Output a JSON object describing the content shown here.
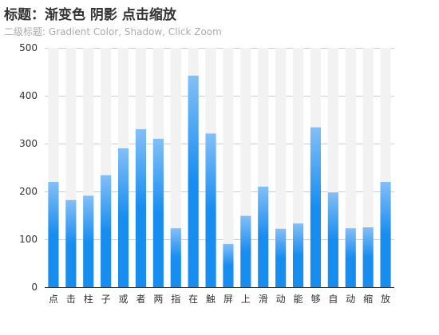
{
  "chart_data": {
    "type": "bar",
    "title": "标题：渐变色 阴影 点击缩放",
    "subtitle": "二级标题: Gradient Color, Shadow, Click Zoom",
    "categories": [
      "点",
      "击",
      "柱",
      "子",
      "或",
      "者",
      "两",
      "指",
      "在",
      "触",
      "屏",
      "上",
      "滑",
      "动",
      "能",
      "够",
      "自",
      "动",
      "缩",
      "放"
    ],
    "values": [
      220,
      182,
      191,
      234,
      290,
      330,
      310,
      123,
      442,
      321,
      90,
      149,
      210,
      122,
      133,
      334,
      198,
      123,
      125,
      220
    ],
    "ylim": [
      0,
      500
    ],
    "yticks": [
      0,
      100,
      200,
      300,
      400,
      500
    ],
    "background_bar_value": 500,
    "grid": true,
    "legend": "none",
    "colors": {
      "bar_top": "#83bff6",
      "bar_mid": "#188df0",
      "bar_bottom": "#188df0",
      "shadow_bar": "#f2f2f2",
      "grid": "#cccccc",
      "axis": "#333333",
      "title": "#333333",
      "subtitle": "#aaaaaa"
    }
  }
}
